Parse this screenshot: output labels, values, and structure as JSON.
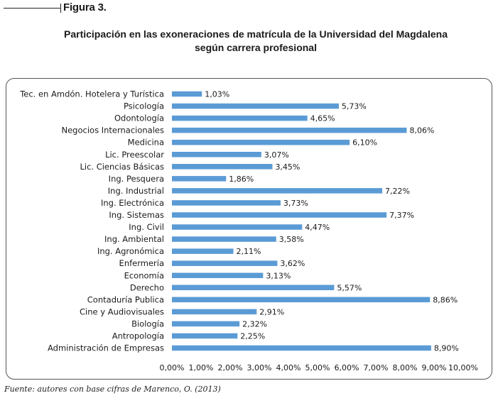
{
  "figure_label": "Figura 3.",
  "title_line1": "Participación en las exoneraciones de matrícula de la Universidad del Magdalena",
  "title_line2": "según carrera profesional",
  "source": "Fuente: autores con base cifras de Marenco, O. (2013)",
  "colors": {
    "bar": "#5b9bd5",
    "text": "#1a1a1a",
    "frame": "#555555"
  },
  "chart_data": {
    "type": "bar",
    "orientation": "horizontal",
    "title": "Participación en las exoneraciones de matrícula de la Universidad del Magdalena según carrera profesional",
    "xlabel": "",
    "ylabel": "",
    "xlim": [
      0,
      10
    ],
    "grid": false,
    "legend": "none",
    "categories": [
      "Tec. en Amdón. Hotelera y Turística",
      "Psicología",
      "Odontología",
      "Negocios Internacionales",
      "Medicina",
      "Lic. Preescolar",
      "Lic. Ciencias Básicas",
      "Ing. Pesquera",
      "Ing. Industrial",
      "Ing. Electrónica",
      "Ing. Sistemas",
      "Ing. Civil",
      "Ing. Ambiental",
      "Ing. Agronómica",
      "Enfermería",
      "Economía",
      "Derecho",
      "Contaduría Publica",
      "Cine y Audiovisuales",
      "Biología",
      "Antropología",
      "Administración de Empresas"
    ],
    "values": [
      1.03,
      5.73,
      4.65,
      8.06,
      6.1,
      3.07,
      3.45,
      1.86,
      7.22,
      3.73,
      7.37,
      4.47,
      3.58,
      2.11,
      3.62,
      3.13,
      5.57,
      8.86,
      2.91,
      2.32,
      2.25,
      8.9
    ],
    "value_labels": [
      "1,03%",
      "5,73%",
      "4,65%",
      "8,06%",
      "6,10%",
      "3,07%",
      "3,45%",
      "1,86%",
      "7,22%",
      "3,73%",
      "7,37%",
      "4,47%",
      "3,58%",
      "2,11%",
      "3,62%",
      "3,13%",
      "5,57%",
      "8,86%",
      "2,91%",
      "2,32%",
      "2,25%",
      "8,90%"
    ],
    "x_ticks": [
      0,
      1,
      2,
      3,
      4,
      5,
      6,
      7,
      8,
      9,
      10
    ],
    "x_tick_labels": [
      "0,00%",
      "1,00%",
      "2,00%",
      "3,00%",
      "4,00%",
      "5,00%",
      "6,00%",
      "7,00%",
      "8,00%",
      "9,00%",
      "10,00%"
    ]
  }
}
